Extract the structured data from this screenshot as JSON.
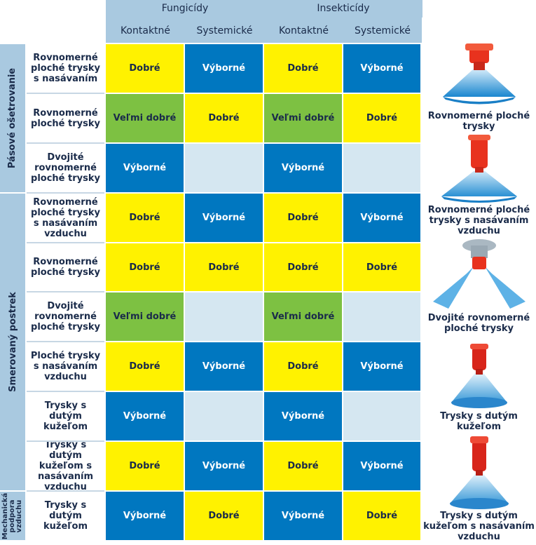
{
  "header": {
    "groups": [
      "Fungicídy",
      "Insekticídy"
    ],
    "columns": [
      "Kontaktné",
      "Systemické",
      "Kontaktné",
      "Systemické"
    ]
  },
  "colors": {
    "yellow": "#fff200",
    "blue": "#0077c0",
    "green": "#7dc142",
    "light": "#d5e7f1",
    "header": "#a9c9e0"
  },
  "sections": [
    {
      "label": "Pásové ošetrovanie",
      "rows": [
        0,
        1,
        2
      ]
    },
    {
      "label": "Smerovaný postrek",
      "rows": [
        3,
        4,
        5,
        6,
        7,
        8
      ]
    },
    {
      "label": "Mechanická podpora vzduchu",
      "rows": [
        9
      ]
    }
  ],
  "rows": [
    {
      "label": "Rovnomerné ploché trysky s nasávaním",
      "cells": [
        [
          "Dobré",
          "yellow"
        ],
        [
          "Výborné",
          "blue"
        ],
        [
          "Dobré",
          "yellow"
        ],
        [
          "Výborné",
          "blue"
        ]
      ]
    },
    {
      "label": "Rovnomerné ploché trysky",
      "cells": [
        [
          "Veľmi dobré",
          "green"
        ],
        [
          "Dobré",
          "yellow"
        ],
        [
          "Veľmi dobré",
          "green"
        ],
        [
          "Dobré",
          "yellow"
        ]
      ]
    },
    {
      "label": "Dvojité rovnomerné ploché trysky",
      "cells": [
        [
          "Výborné",
          "blue"
        ],
        [
          "",
          "light"
        ],
        [
          "Výborné",
          "blue"
        ],
        [
          "",
          "light"
        ]
      ]
    },
    {
      "label": "Rovnomerné ploché trysky s nasávaním vzduchu",
      "cells": [
        [
          "Dobré",
          "yellow"
        ],
        [
          "Výborné",
          "blue"
        ],
        [
          "Dobré",
          "yellow"
        ],
        [
          "Výborné",
          "blue"
        ]
      ]
    },
    {
      "label": "Rovnomerné ploché trysky",
      "cells": [
        [
          "Dobré",
          "yellow"
        ],
        [
          "Dobré",
          "yellow"
        ],
        [
          "Dobré",
          "yellow"
        ],
        [
          "Dobré",
          "yellow"
        ]
      ]
    },
    {
      "label": "Dvojité rovnomerné ploché trysky",
      "cells": [
        [
          "Veľmi dobré",
          "green"
        ],
        [
          "",
          "light"
        ],
        [
          "Veľmi dobré",
          "green"
        ],
        [
          "",
          "light"
        ]
      ]
    },
    {
      "label": "Ploché trysky s nasávaním vzduchu",
      "cells": [
        [
          "Dobré",
          "yellow"
        ],
        [
          "Výborné",
          "blue"
        ],
        [
          "Dobré",
          "yellow"
        ],
        [
          "Výborné",
          "blue"
        ]
      ]
    },
    {
      "label": "Trysky s dutým kužeľom",
      "cells": [
        [
          "Výborné",
          "blue"
        ],
        [
          "",
          "light"
        ],
        [
          "Výborné",
          "blue"
        ],
        [
          "",
          "light"
        ]
      ]
    },
    {
      "label": "Trysky s dutým kužeľom s nasávaním vzduchu",
      "cells": [
        [
          "Dobré",
          "yellow"
        ],
        [
          "Výborné",
          "blue"
        ],
        [
          "Dobré",
          "yellow"
        ],
        [
          "Výborné",
          "blue"
        ]
      ]
    },
    {
      "label": "Trysky s dutým kužeľom",
      "cells": [
        [
          "Výborné",
          "blue"
        ],
        [
          "Dobré",
          "yellow"
        ],
        [
          "Výborné",
          "blue"
        ],
        [
          "Dobré",
          "yellow"
        ]
      ]
    }
  ],
  "nozzles": [
    {
      "label": "Rovnomerné ploché trysky",
      "icon": "flat-fan-nozzle-icon"
    },
    {
      "label": "Rovnomerné ploché trysky s nasávaním vzduchu",
      "icon": "air-induction-flat-fan-nozzle-icon"
    },
    {
      "label": "Dvojité rovnomerné ploché trysky",
      "icon": "twin-flat-fan-nozzle-icon"
    },
    {
      "label": "Trysky s dutým kužeľom",
      "icon": "hollow-cone-nozzle-icon"
    },
    {
      "label": "Trysky s dutým kužeľom s nasávaním vzduchu",
      "icon": "air-induction-hollow-cone-nozzle-icon"
    }
  ]
}
